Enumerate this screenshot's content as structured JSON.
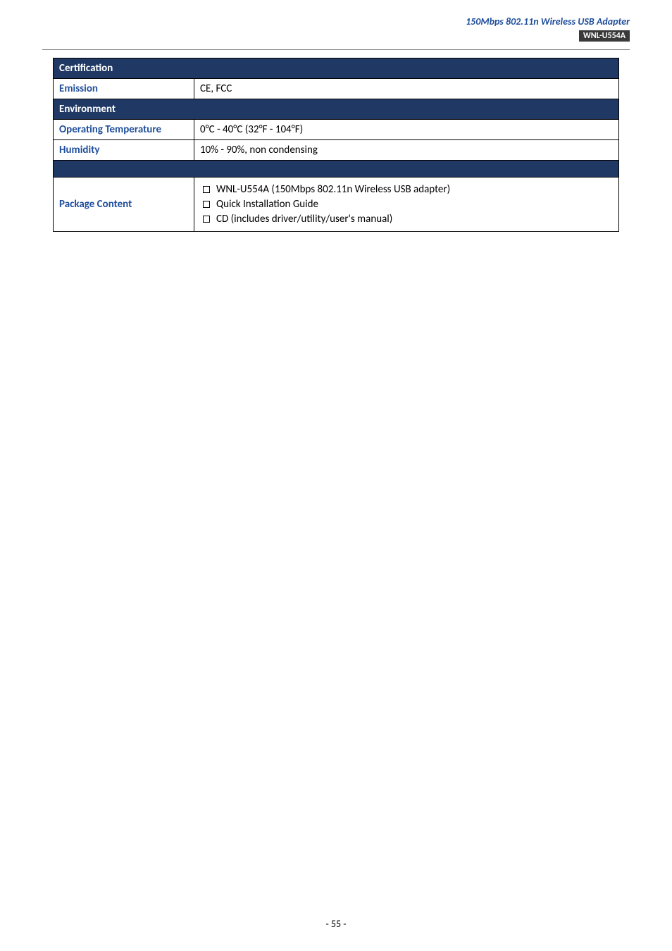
{
  "header": {
    "title": "150Mbps 802.11n Wireless USB Adapter",
    "badge": "WNL-U554A"
  },
  "sections": {
    "certification": {
      "title": "Certification",
      "rows": {
        "emission": {
          "label": "Emission",
          "value": "CE, FCC"
        }
      }
    },
    "environment": {
      "title": "Environment",
      "rows": {
        "operating_temp": {
          "label": "Operating Temperature",
          "value": "0°C - 40°C (32°F - 104°F)"
        },
        "humidity": {
          "label": "Humidity",
          "value": "10% - 90%, non condensing"
        }
      }
    },
    "package": {
      "label": "Package Content",
      "items": [
        "WNL-U554A (150Mbps 802.11n Wireless USB adapter)",
        "Quick Installation Guide",
        "CD (includes driver/utility/user's manual)"
      ]
    }
  },
  "footer": {
    "page": "- 55 -"
  },
  "colors": {
    "header_bg": "#1f3864",
    "header_text": "#ffffff",
    "label_text": "#1f4e9c",
    "border": "#000000"
  }
}
